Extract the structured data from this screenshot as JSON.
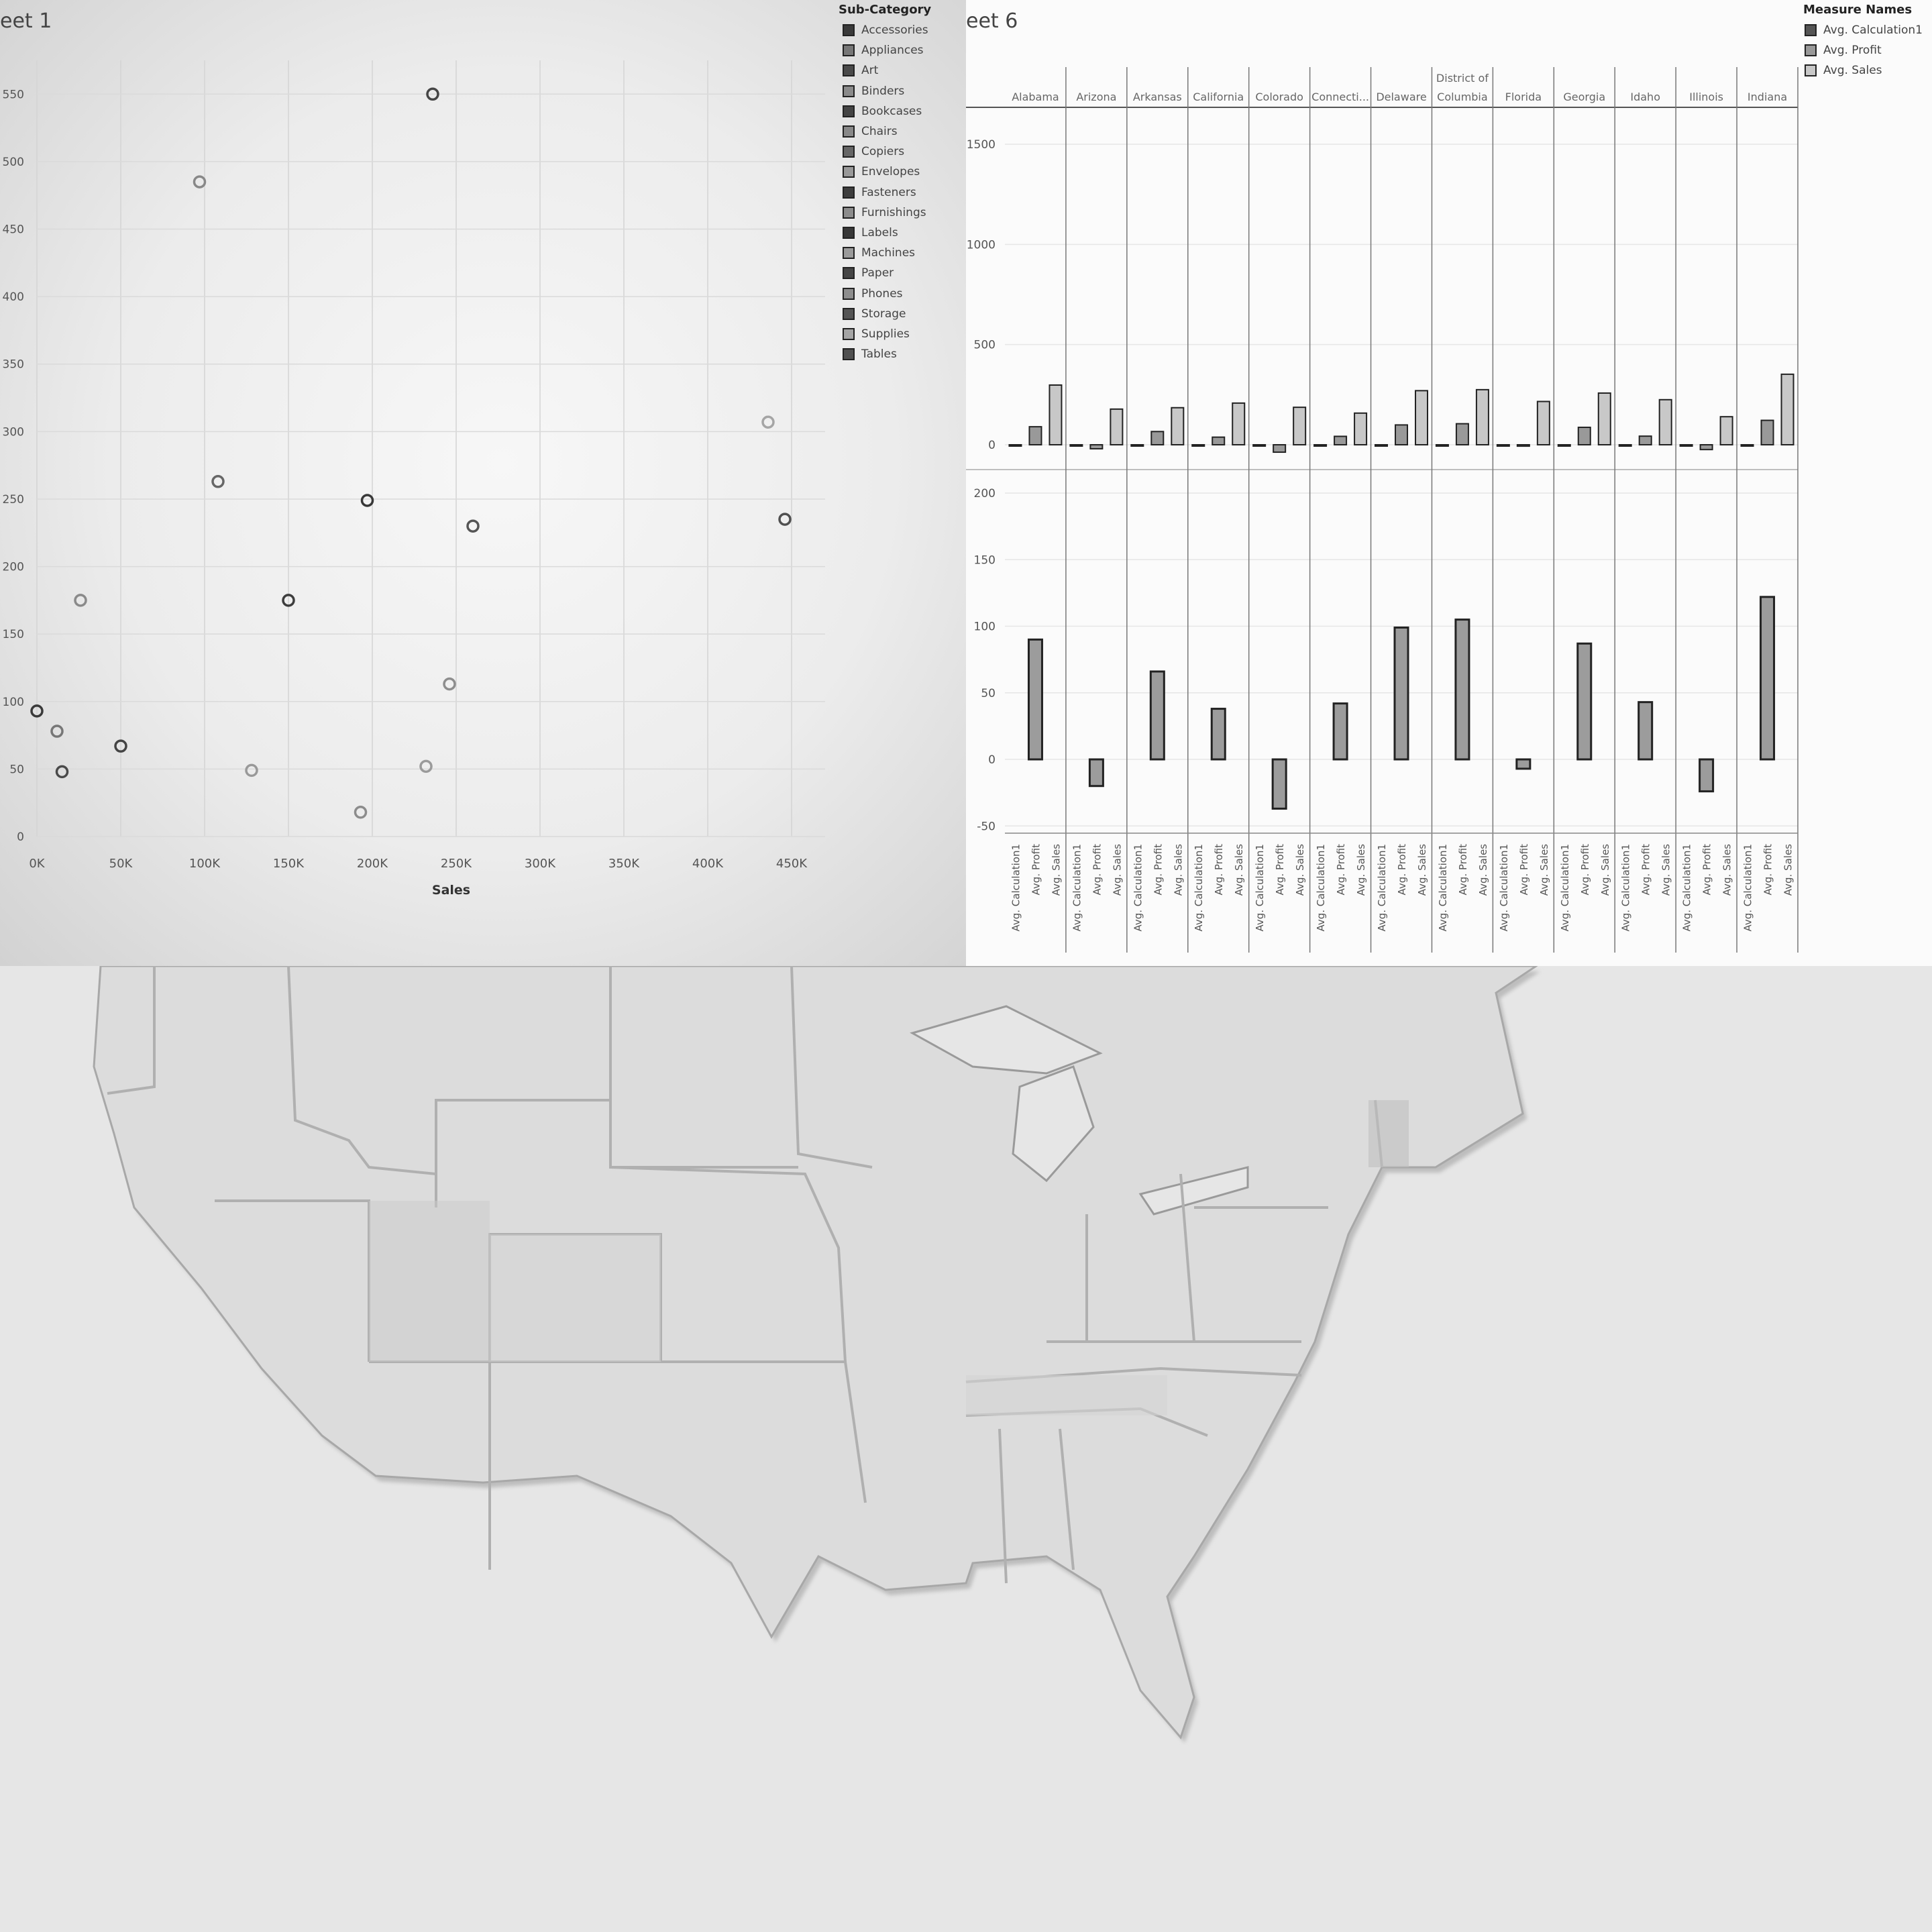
{
  "sheet1": {
    "title": "eet 1",
    "legend_title": "Sub-Category",
    "legend_items": [
      "Accessories",
      "Appliances",
      "Art",
      "Binders",
      "Bookcases",
      "Chairs",
      "Copiers",
      "Envelopes",
      "Fasteners",
      "Furnishings",
      "Labels",
      "Machines",
      "Paper",
      "Phones",
      "Storage",
      "Supplies",
      "Tables"
    ],
    "legend_colors": [
      "#3a3a3a",
      "#777777",
      "#4a4a4a",
      "#8a8a8a",
      "#444444",
      "#888888",
      "#666666",
      "#999999",
      "#3e3e3e",
      "#8c8c8c",
      "#383838",
      "#9a9a9a",
      "#454545",
      "#8e8e8e",
      "#555555",
      "#a5a5a5",
      "#505050"
    ]
  },
  "sheet6": {
    "title": "eet 6",
    "legend_title": "Measure Names",
    "legend_items": [
      "Avg. Calculation1",
      "Avg. Profit",
      "Avg. Sales"
    ],
    "legend_colors": [
      "#555555",
      "#999999",
      "#c8c8c8"
    ],
    "states": [
      "Alabama",
      "Arizona",
      "Arkansas",
      "California",
      "Colorado",
      "Connecti...",
      "Delaware",
      "District of Columbia",
      "Florida",
      "Georgia",
      "Idaho",
      "Illinois",
      "Indiana"
    ],
    "measure_labels": [
      "Avg. Calculation1",
      "Avg. Profit",
      "Avg. Sales"
    ]
  },
  "chart_data": [
    {
      "type": "scatter",
      "title": "",
      "xlabel": "Sales",
      "ylabel": "",
      "xlim": [
        0,
        470000
      ],
      "ylim": [
        0,
        575
      ],
      "x_ticks": [
        "0K",
        "50K",
        "100K",
        "150K",
        "200K",
        "250K",
        "300K",
        "350K",
        "400K",
        "450K"
      ],
      "y_ticks": [
        "0",
        "50",
        "100",
        "150",
        "200",
        "250",
        "300",
        "350",
        "400",
        "450",
        "500",
        "550"
      ],
      "grid": true,
      "legend_position": "right",
      "points": [
        {
          "x": 0,
          "y": 93,
          "category": "Accessories"
        },
        {
          "x": 12000,
          "y": 78,
          "category": "Appliances"
        },
        {
          "x": 15000,
          "y": 48,
          "category": "Art"
        },
        {
          "x": 26000,
          "y": 175,
          "category": "Binders"
        },
        {
          "x": 50000,
          "y": 67,
          "category": "Bookcases"
        },
        {
          "x": 97000,
          "y": 485,
          "category": "Chairs"
        },
        {
          "x": 108000,
          "y": 263,
          "category": "Copiers"
        },
        {
          "x": 128000,
          "y": 49,
          "category": "Envelopes"
        },
        {
          "x": 150000,
          "y": 175,
          "category": "Fasteners"
        },
        {
          "x": 193000,
          "y": 18,
          "category": "Furnishings"
        },
        {
          "x": 197000,
          "y": 249,
          "category": "Labels"
        },
        {
          "x": 232000,
          "y": 52,
          "category": "Machines"
        },
        {
          "x": 236000,
          "y": 550,
          "category": "Paper"
        },
        {
          "x": 246000,
          "y": 113,
          "category": "Phones"
        },
        {
          "x": 260000,
          "y": 230,
          "category": "Storage"
        },
        {
          "x": 436000,
          "y": 307,
          "category": "Supplies"
        },
        {
          "x": 446000,
          "y": 235,
          "category": "Tables"
        }
      ]
    },
    {
      "type": "bar",
      "title": "",
      "categories": [
        "Alabama",
        "Arizona",
        "Arkansas",
        "California",
        "Colorado",
        "Connecti...",
        "Delaware",
        "District of Columbia",
        "Florida",
        "Georgia",
        "Idaho",
        "Illinois",
        "Indiana"
      ],
      "series": [
        {
          "name": "Avg. Calculation1",
          "values": [
            0,
            0,
            0,
            0,
            0,
            0,
            0,
            0,
            0,
            0,
            0,
            0,
            0
          ]
        },
        {
          "name": "Avg. Profit",
          "values": [
            90,
            -20,
            66,
            38,
            -37,
            42,
            99,
            105,
            -7,
            87,
            43,
            -24,
            122
          ]
        },
        {
          "name": "Avg. Sales",
          "values": [
            298,
            178,
            185,
            208,
            187,
            158,
            270,
            275,
            216,
            258,
            225,
            140,
            352
          ]
        }
      ],
      "upper_panel": {
        "ylim": [
          -120,
          1600
        ],
        "y_ticks": [
          "0",
          "500",
          "1000",
          "1500"
        ]
      },
      "lower_panel": {
        "measure": "Avg. Profit",
        "ylim": [
          -55,
          215
        ],
        "y_ticks": [
          "-50",
          "0",
          "50",
          "100",
          "150",
          "200"
        ]
      },
      "legend_position": "top-right"
    }
  ],
  "map": {
    "colors": {
      "land": "#d9d9d9",
      "water": "#e8e8e8",
      "border": "#b8b8b8",
      "shade": "#c4c4c4"
    }
  }
}
